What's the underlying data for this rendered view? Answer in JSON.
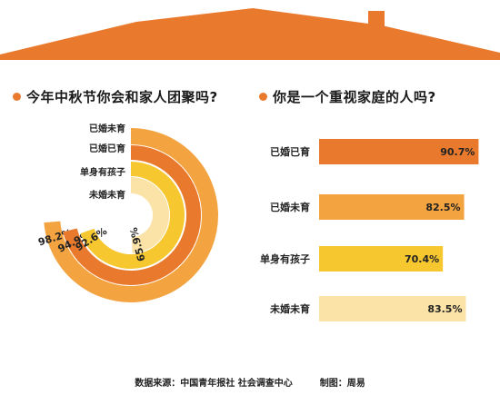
{
  "colors": {
    "roof": "#e97a2d",
    "bullet": "#e97a2d",
    "married_no_child": "#f3a33f",
    "married_with_child": "#e97a2d",
    "single_with_child": "#f6c72e",
    "unmarried_no_child": "#fbe3a7"
  },
  "left_title": "今年中秋节你会和家人团聚吗?",
  "right_title": "你是一个重视家庭的人吗?",
  "footer": {
    "source": "数据来源：中国青年报社 社会调查中心",
    "credit": "制图：周易"
  },
  "chart_data": [
    {
      "type": "radial-bar",
      "title": "今年中秋节你会和家人团聚吗?",
      "categories": [
        "已婚未育",
        "已婚已育",
        "单身有孩子",
        "未婚未育"
      ],
      "values": [
        98.2,
        94.9,
        92.6,
        65.9
      ],
      "value_labels": [
        "98.2%",
        "94.9%",
        "92.6%",
        "65.9%"
      ],
      "colors": [
        "#f3a33f",
        "#e97a2d",
        "#f6c72e",
        "#fbe3a7"
      ]
    },
    {
      "type": "bar",
      "orientation": "horizontal",
      "title": "你是一个重视家庭的人吗?",
      "categories": [
        "已婚已育",
        "已婚未育",
        "单身有孩子",
        "未婚未育"
      ],
      "values": [
        90.7,
        82.5,
        70.4,
        83.5
      ],
      "value_labels": [
        "90.7%",
        "82.5%",
        "70.4%",
        "83.5%"
      ],
      "colors": [
        "#e97a2d",
        "#f3a33f",
        "#f6c72e",
        "#fbe3a7"
      ]
    }
  ]
}
